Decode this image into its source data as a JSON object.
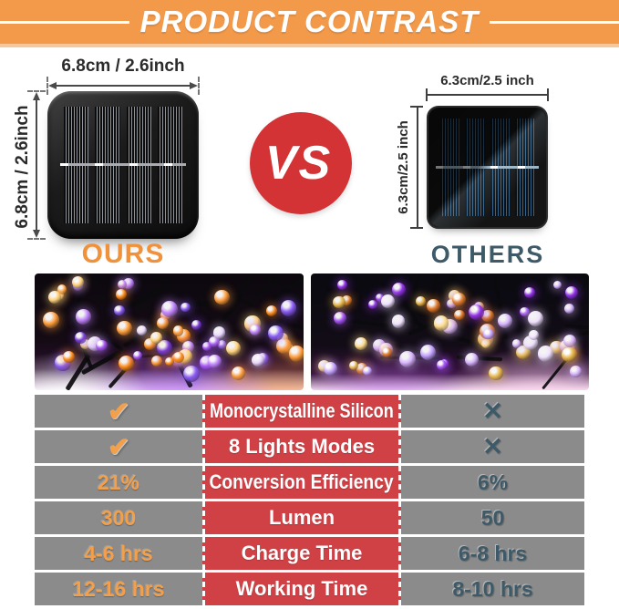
{
  "banner": {
    "title": "PRODUCT CONTRAST"
  },
  "comparison": {
    "vs_label": "VS",
    "ours": {
      "label": "OURS",
      "width_label": "6.8cm / 2.6inch",
      "height_label": "6.8cm / 2.6inch"
    },
    "others": {
      "label": "OTHERS",
      "width_label": "6.3cm/2.5 inch",
      "height_label": "6.3cm/2.5 inch"
    }
  },
  "table": {
    "rows": [
      {
        "ours": "✔",
        "feature": "Monocrystalline Silicon",
        "others": "✕"
      },
      {
        "ours": "✔",
        "feature": "8 Lights Modes",
        "others": "✕"
      },
      {
        "ours": "21%",
        "feature": "Conversion Efficiency",
        "others": "6%"
      },
      {
        "ours": "300",
        "feature": "Lumen",
        "others": "50"
      },
      {
        "ours": "4-6 hrs",
        "feature": "Charge Time",
        "others": "6-8 hrs"
      },
      {
        "ours": "12-16 hrs",
        "feature": "Working Time",
        "others": "8-10 hrs"
      }
    ]
  },
  "colors": {
    "banner_orange": "#F2994A",
    "accent_orange": "#F0913C",
    "check_orange": "#F2A04C",
    "table_red": "#D04146",
    "vs_red": "#D43335",
    "row_gray": "#8B8B8B",
    "slate": "#3E5A68"
  }
}
